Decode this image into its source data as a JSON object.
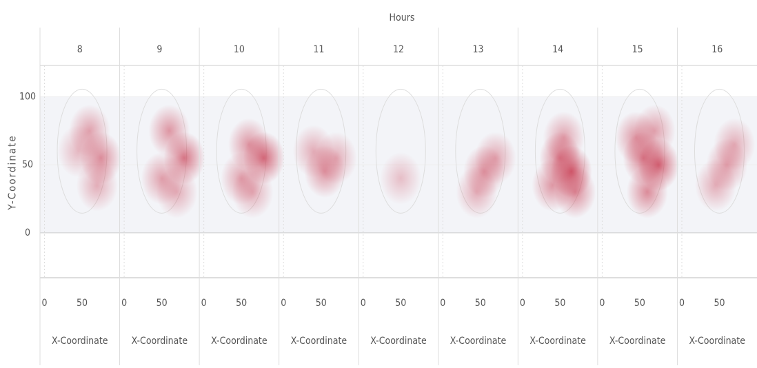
{
  "chart_data": {
    "type": "heatmap",
    "facet_title": "Hours",
    "facets": [
      "8",
      "9",
      "10",
      "11",
      "12",
      "13",
      "14",
      "15",
      "16"
    ],
    "xlabel": "X-Coordinate",
    "ylabel": "Y-Coordinate",
    "xlim": [
      -6,
      100
    ],
    "xticks": [
      0,
      50
    ],
    "ylim": [
      -33,
      123
    ],
    "yticks": [
      0,
      50,
      100
    ],
    "color": "#c8384e",
    "panels": [
      {
        "x": [
          75,
          60,
          70,
          45
        ],
        "y": [
          55,
          75,
          35,
          60
        ],
        "values": [
          0.6,
          0.4,
          0.3,
          0.2
        ]
      },
      {
        "x": [
          80,
          60,
          50,
          70
        ],
        "y": [
          55,
          75,
          40,
          30
        ],
        "values": [
          0.8,
          0.5,
          0.4,
          0.3
        ]
      },
      {
        "x": [
          80,
          60,
          50,
          65
        ],
        "y": [
          55,
          65,
          40,
          30
        ],
        "values": [
          0.9,
          0.5,
          0.4,
          0.3
        ]
      },
      {
        "x": [
          55,
          70,
          40
        ],
        "y": [
          45,
          55,
          60
        ],
        "values": [
          0.5,
          0.3,
          0.3
        ]
      },
      {
        "x": [
          50
        ],
        "y": [
          40
        ],
        "values": [
          0.15
        ]
      },
      {
        "x": [
          55,
          70,
          45
        ],
        "y": [
          45,
          55,
          30
        ],
        "values": [
          0.45,
          0.35,
          0.3
        ]
      },
      {
        "x": [
          65,
          50,
          70,
          40,
          55
        ],
        "y": [
          45,
          55,
          30,
          35,
          70
        ],
        "values": [
          1.0,
          0.7,
          0.6,
          0.5,
          0.4
        ]
      },
      {
        "x": [
          75,
          55,
          60,
          45,
          70
        ],
        "y": [
          50,
          55,
          30,
          70,
          75
        ],
        "values": [
          0.95,
          0.7,
          0.6,
          0.5,
          0.4
        ]
      },
      {
        "x": [
          60,
          45,
          70
        ],
        "y": [
          50,
          35,
          65
        ],
        "values": [
          0.4,
          0.3,
          0.3
        ]
      }
    ]
  }
}
